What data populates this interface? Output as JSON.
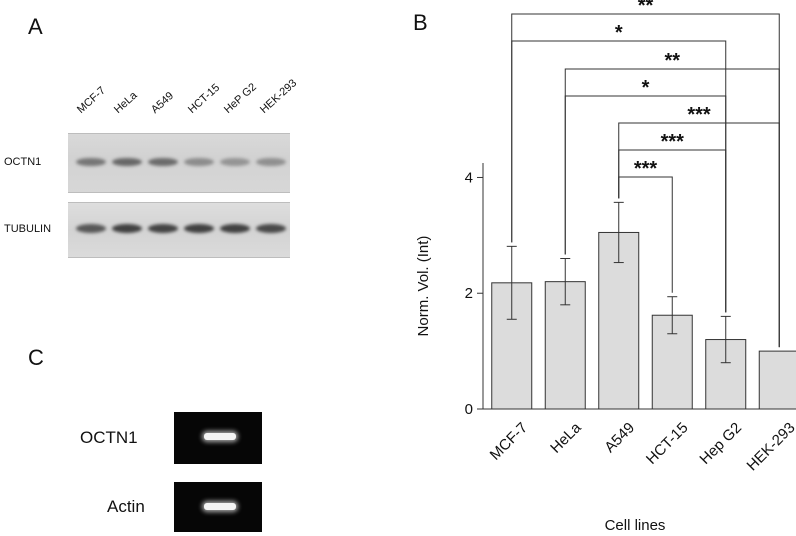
{
  "panels": {
    "a": "A",
    "b": "B",
    "c": "C"
  },
  "western_blot": {
    "lanes": [
      "MCF-7",
      "HeLa",
      "A549",
      "HCT-15",
      "HeP G2",
      "HEK-293"
    ],
    "rows": [
      {
        "label": "OCTN1",
        "band_intensity": [
          0.55,
          0.65,
          0.62,
          0.4,
          0.35,
          0.38
        ]
      },
      {
        "label": "TUBULIN",
        "band_intensity": [
          0.75,
          0.9,
          0.88,
          0.9,
          0.9,
          0.85
        ]
      }
    ]
  },
  "rt_pcr": {
    "rows": [
      {
        "label": "OCTN1"
      },
      {
        "label": "Actin"
      }
    ]
  },
  "colors": {
    "bar_fill": "#dcdcdc",
    "bar_stroke": "#333333",
    "gel_background": "#060606"
  },
  "chart_data": {
    "type": "bar",
    "categories": [
      "MCF-7",
      "HeLa",
      "A549",
      "HCT-15",
      "Hep G2",
      "HEK-293"
    ],
    "values": [
      2.18,
      2.2,
      3.05,
      1.62,
      1.2,
      1.0
    ],
    "errors": [
      0.63,
      0.4,
      0.52,
      0.32,
      0.4,
      0.0
    ],
    "title": "",
    "xlabel": "Cell lines",
    "ylabel": "Norm. Vol. (Int)",
    "ylim": [
      0,
      4.25
    ],
    "yticks": [
      0,
      2,
      4
    ],
    "grid": false,
    "significance": [
      {
        "from": "MCF-7",
        "to": "HEK-293",
        "label": "**"
      },
      {
        "from": "MCF-7",
        "to": "Hep G2",
        "label": "*"
      },
      {
        "from": "HeLa",
        "to": "HEK-293",
        "label": "**"
      },
      {
        "from": "HeLa",
        "to": "Hep G2",
        "label": "*"
      },
      {
        "from": "A549",
        "to": "HEK-293",
        "label": "***"
      },
      {
        "from": "A549",
        "to": "Hep G2",
        "label": "***"
      },
      {
        "from": "A549",
        "to": "HCT-15",
        "label": "***"
      }
    ]
  }
}
